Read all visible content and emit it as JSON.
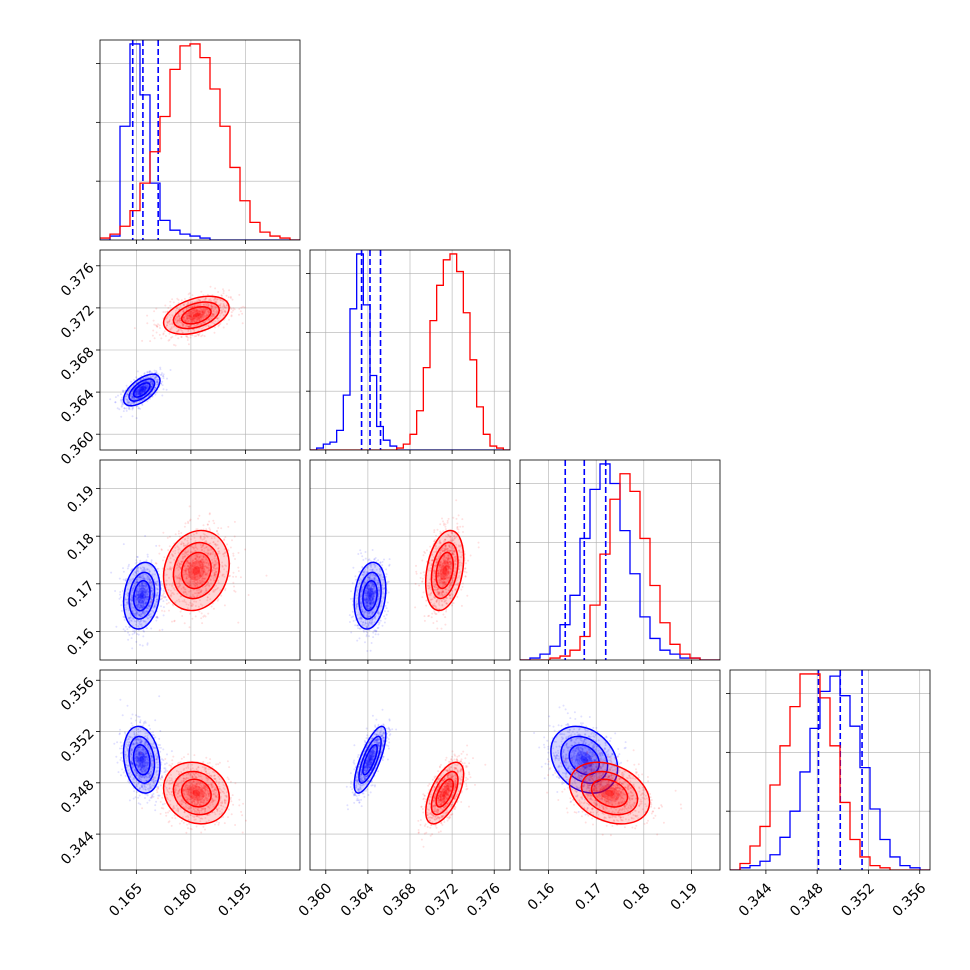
{
  "chart_data": {
    "type": "corner",
    "grid": true,
    "colors": {
      "series_a": "#0000ff",
      "series_b": "#ff0000"
    },
    "parameters": [
      {
        "range": [
          0.155,
          0.21
        ],
        "ticks": [
          0.165,
          0.18,
          0.195
        ],
        "tick_labels": [
          "0.165",
          "0.180",
          "0.195"
        ]
      },
      {
        "range": [
          0.3585,
          0.3775
        ],
        "ticks": [
          0.36,
          0.364,
          0.368,
          0.372,
          0.376
        ],
        "tick_labels": [
          "0.360",
          "0.364",
          "0.368",
          "0.372",
          "0.376"
        ]
      },
      {
        "range": [
          0.154,
          0.196
        ],
        "ticks": [
          0.16,
          0.17,
          0.18,
          0.19
        ],
        "tick_labels": [
          "0.16",
          "0.17",
          "0.18",
          "0.19"
        ]
      },
      {
        "range": [
          0.3412,
          0.3568
        ],
        "ticks": [
          0.344,
          0.348,
          0.352,
          0.356
        ],
        "tick_labels": [
          "0.344",
          "0.348",
          "0.352",
          "0.356"
        ]
      }
    ],
    "series": [
      {
        "color": "#0000ff",
        "mean": [
          0.1665,
          0.3642,
          0.1675,
          0.3498
        ],
        "sd": [
          0.0025,
          0.00075,
          0.0035,
          0.0013
        ],
        "corr": {
          "0-1": 0.6,
          "0-2": 0.2,
          "0-3": -0.2,
          "1-2": 0.2,
          "1-3": 0.75,
          "2-3": -0.25
        },
        "quantiles": [
          [
            0.164,
            0.1668,
            0.171
          ],
          [
            0.3634,
            0.3642,
            0.3652
          ],
          [
            0.1635,
            0.1675,
            0.172
          ],
          [
            0.3481,
            0.3498,
            0.3515
          ]
        ],
        "histograms": [
          [
            0,
            0.02,
            0.58,
            1.0,
            0.74,
            0.29,
            0.1,
            0.05,
            0.03,
            0.02,
            0.01,
            0,
            0,
            0,
            0,
            0,
            0,
            0,
            0,
            0
          ],
          [
            0,
            0.01,
            0.03,
            0.04,
            0.1,
            0.28,
            0.72,
            1.0,
            0.74,
            0.38,
            0.12,
            0.05,
            0.02,
            0,
            0,
            0,
            0,
            0,
            0,
            0,
            0,
            0,
            0,
            0,
            0,
            0,
            0,
            0,
            0,
            0
          ],
          [
            0,
            0.01,
            0.03,
            0.07,
            0.18,
            0.33,
            0.62,
            0.87,
            1.0,
            0.9,
            0.66,
            0.44,
            0.22,
            0.11,
            0.05,
            0.03,
            0.01,
            0.01,
            0,
            0
          ],
          [
            0,
            0.01,
            0.02,
            0.04,
            0.07,
            0.15,
            0.27,
            0.45,
            0.65,
            0.82,
            0.89,
            0.8,
            0.66,
            0.47,
            0.28,
            0.14,
            0.06,
            0.02,
            0.01,
            0
          ]
        ]
      },
      {
        "color": "#ff0000",
        "mean": [
          0.1815,
          0.3713,
          0.1728,
          0.3472
        ],
        "sd": [
          0.0045,
          0.0009,
          0.0042,
          0.0012
        ],
        "corr": {
          "0-1": 0.4,
          "0-2": 0.15,
          "0-3": -0.15,
          "1-2": 0.3,
          "1-3": 0.6,
          "2-3": -0.3
        },
        "quantiles": null,
        "histograms": [
          [
            0.01,
            0.03,
            0.07,
            0.15,
            0.29,
            0.45,
            0.63,
            0.87,
            0.99,
            1.0,
            0.93,
            0.77,
            0.58,
            0.37,
            0.2,
            0.09,
            0.04,
            0.02,
            0.01,
            0
          ],
          [
            0,
            0,
            0,
            0,
            0,
            0,
            0,
            0,
            0,
            0,
            0,
            0,
            0,
            0.01,
            0.03,
            0.08,
            0.2,
            0.42,
            0.66,
            0.84,
            0.97,
            1.0,
            0.91,
            0.7,
            0.46,
            0.22,
            0.08,
            0.02,
            0.01,
            0
          ],
          [
            0,
            0,
            0,
            0.01,
            0.02,
            0.05,
            0.12,
            0.28,
            0.54,
            0.82,
            0.95,
            0.86,
            0.62,
            0.38,
            0.19,
            0.08,
            0.03,
            0.01,
            0,
            0
          ],
          [
            0,
            0.03,
            0.11,
            0.2,
            0.39,
            0.57,
            0.75,
            0.9,
            0.9,
            0.79,
            0.57,
            0.31,
            0.14,
            0.06,
            0.02,
            0.01,
            0,
            0,
            0,
            0
          ]
        ]
      }
    ]
  }
}
